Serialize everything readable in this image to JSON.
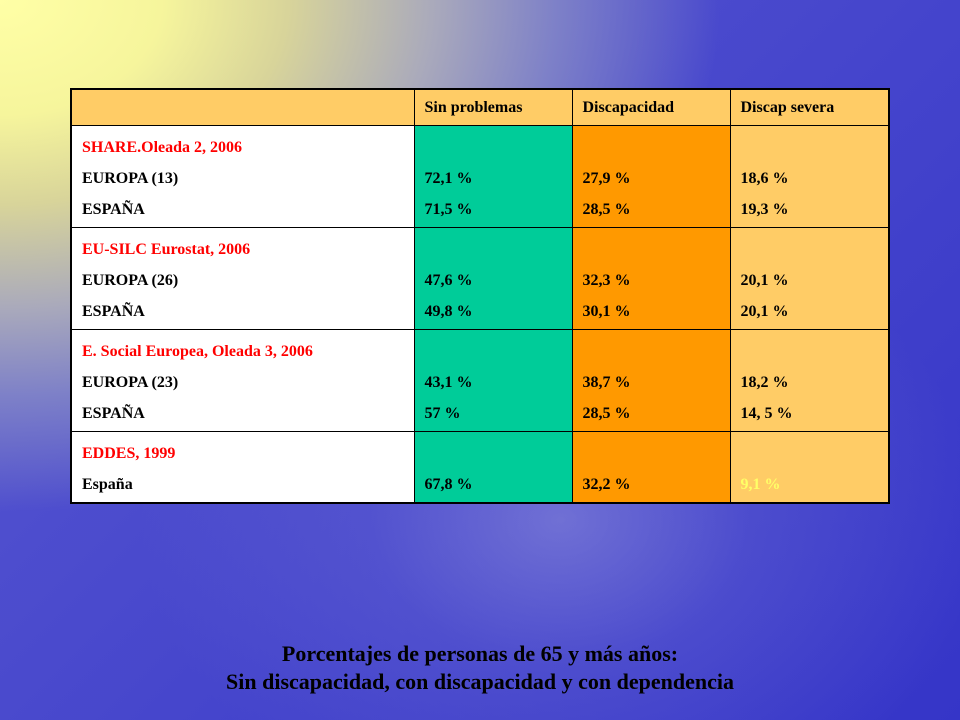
{
  "table": {
    "headers": [
      "",
      "Sin problemas",
      "Discapacidad",
      "Discap severa"
    ],
    "colors": {
      "sin_problemas": "#00cc99",
      "discapacidad": "#ff9900",
      "discap_severa": "#ffcc66",
      "source_title": "#ff0000",
      "highlight_value": "#ffff66"
    },
    "rows": [
      {
        "source": "SHARE.Oleada 2, 2006",
        "regions": [
          "EUROPA (13)",
          "ESPAÑA"
        ],
        "sin_problemas": [
          "72,1 %",
          "71,5 %"
        ],
        "discapacidad": [
          "27,9 %",
          "28,5 %"
        ],
        "discap_severa": [
          "18,6 %",
          "19,3 %"
        ]
      },
      {
        "source": "EU-SILC Eurostat, 2006",
        "regions": [
          "EUROPA (26)",
          "ESPAÑA"
        ],
        "sin_problemas": [
          "47,6 %",
          "49,8 %"
        ],
        "discapacidad": [
          "32,3 %",
          "30,1 %"
        ],
        "discap_severa": [
          "20,1 %",
          "20,1 %"
        ]
      },
      {
        "source": "E. Social Europea, Oleada 3, 2006",
        "regions": [
          "EUROPA (23)",
          "ESPAÑA"
        ],
        "sin_problemas": [
          "43,1 %",
          "57 %"
        ],
        "discapacidad": [
          "38,7 %",
          "28,5 %"
        ],
        "discap_severa": [
          "18,2 %",
          "14, 5 %"
        ]
      },
      {
        "source": "EDDES, 1999",
        "regions": [
          "España"
        ],
        "sin_problemas": [
          "67,8 %"
        ],
        "discapacidad": [
          "32,2 %"
        ],
        "discap_severa": [
          "9,1 %"
        ]
      }
    ]
  },
  "caption": {
    "line1": "Porcentajes de personas de 65 y más años:",
    "line2": "Sin discapacidad, con discapacidad y con dependencia"
  }
}
